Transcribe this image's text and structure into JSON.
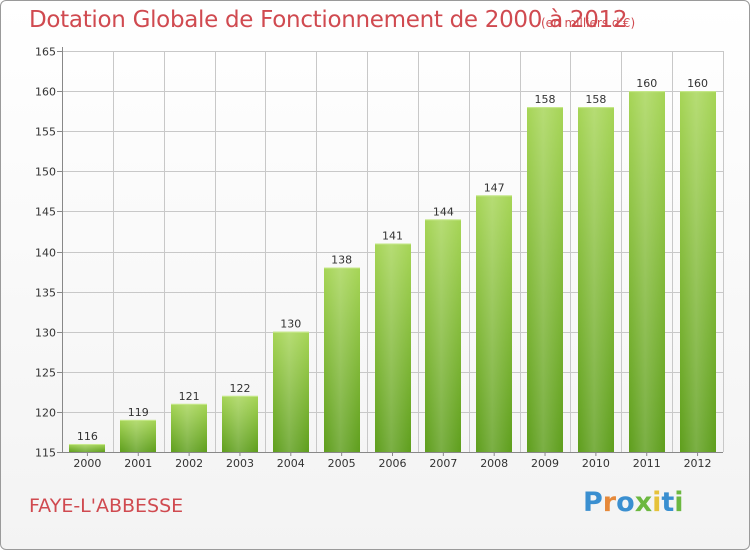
{
  "title": "Dotation Globale de Fonctionnement de 2000 à 2012",
  "subtitle": "(en milliers d'€)",
  "place": "FAYE-L'ABBESSE",
  "logo": {
    "letters": [
      "P",
      "r",
      "o",
      "x",
      "i",
      "t",
      "i"
    ],
    "colors": [
      "#3a8fd0",
      "#e6893a",
      "#3a8fd0",
      "#6cb840",
      "#e6c23a",
      "#3a8fd0",
      "#6cb840"
    ]
  },
  "colors": {
    "bar_light": "#a6d556",
    "bar_dark": "#5e9e1c",
    "title": "#d04a50",
    "grid": "#c8c8c8"
  },
  "chart_data": {
    "type": "bar",
    "title": "Dotation Globale de Fonctionnement de 2000 à 2012",
    "subtitle": "(en milliers d'€)",
    "xlabel": "",
    "ylabel": "",
    "categories": [
      "2000",
      "2001",
      "2002",
      "2003",
      "2004",
      "2005",
      "2006",
      "2007",
      "2008",
      "2009",
      "2010",
      "2011",
      "2012"
    ],
    "values": [
      116,
      119,
      121,
      122,
      130,
      138,
      141,
      144,
      147,
      158,
      158,
      160,
      160
    ],
    "ylim": [
      115,
      165
    ],
    "yticks": [
      115,
      120,
      125,
      130,
      135,
      140,
      145,
      150,
      155,
      160,
      165
    ],
    "grid": true,
    "legend": "none"
  }
}
